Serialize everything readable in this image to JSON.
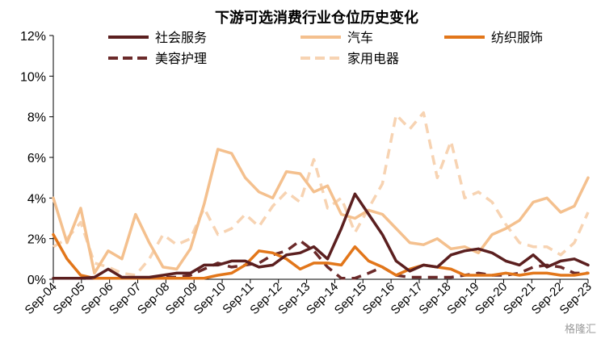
{
  "watermark": "格隆汇",
  "chart_data": {
    "type": "line",
    "title": "下游可选消费行业仓位历史变化",
    "ylim": [
      0,
      12
    ],
    "yticks": [
      "0%",
      "2%",
      "4%",
      "6%",
      "8%",
      "10%",
      "12%"
    ],
    "xticks": [
      "Sep-04",
      "Sep-05",
      "Sep-06",
      "Sep-07",
      "Sep-08",
      "Sep-09",
      "Sep-10",
      "Sep-11",
      "Sep-12",
      "Sep-13",
      "Sep-14",
      "Sep-15",
      "Sep-16",
      "Sep-17",
      "Sep-18",
      "Sep-19",
      "Sep-20",
      "Sep-21",
      "Sep-22",
      "Sep-23"
    ],
    "legend_position": "top",
    "series": [
      {
        "name": "社会服务",
        "color": "#5b1f1f",
        "dash": "solid",
        "values": [
          0.05,
          0.05,
          0.05,
          0.1,
          0.5,
          0.1,
          0.1,
          0.1,
          0.2,
          0.3,
          0.3,
          0.7,
          0.7,
          0.9,
          0.9,
          0.6,
          0.7,
          1.2,
          1.3,
          1.6,
          1.0,
          2.5,
          4.2,
          3.2,
          2.2,
          0.9,
          0.4,
          0.7,
          0.6,
          1.2,
          1.4,
          1.5,
          1.3,
          0.9,
          0.7,
          1.2,
          0.6,
          0.9,
          1.0,
          0.7
        ]
      },
      {
        "name": "汽车",
        "color": "#f4c08e",
        "dash": "solid",
        "values": [
          4.0,
          1.8,
          3.5,
          0.3,
          1.4,
          1.0,
          3.2,
          1.8,
          0.6,
          0.5,
          1.5,
          3.7,
          6.4,
          6.2,
          5.0,
          4.3,
          4.0,
          5.3,
          5.2,
          4.3,
          4.6,
          3.2,
          3.0,
          3.4,
          3.2,
          2.5,
          1.8,
          1.7,
          2.0,
          1.5,
          1.6,
          1.3,
          2.2,
          2.5,
          2.9,
          3.8,
          4.0,
          3.3,
          3.6,
          5.0
        ]
      },
      {
        "name": "纺织服饰",
        "color": "#e2761a",
        "dash": "solid",
        "values": [
          2.2,
          1.0,
          0.2,
          0.05,
          0.05,
          0.05,
          0.05,
          0.05,
          0.05,
          0.05,
          0.05,
          0.05,
          0.2,
          0.3,
          0.7,
          1.4,
          1.3,
          1.0,
          0.5,
          0.8,
          0.8,
          0.7,
          1.6,
          0.9,
          0.6,
          0.2,
          0.5,
          0.7,
          0.6,
          0.5,
          0.2,
          0.2,
          0.2,
          0.3,
          0.2,
          0.3,
          0.3,
          0.2,
          0.2,
          0.3
        ]
      },
      {
        "name": "美容护理",
        "color": "#6b2a2a",
        "dash": "dashed",
        "values": [
          0.05,
          0.05,
          0.05,
          0.05,
          0.05,
          0.05,
          0.05,
          0.05,
          0.1,
          0.1,
          0.2,
          0.5,
          0.8,
          0.6,
          0.7,
          0.8,
          1.2,
          1.4,
          1.9,
          1.4,
          0.6,
          0.05,
          0.05,
          0.3,
          0.6,
          0.2,
          0.1,
          0.1,
          0.1,
          0.1,
          0.2,
          0.3,
          0.2,
          0.2,
          0.3,
          0.6,
          0.7,
          0.6,
          0.3,
          0.3
        ]
      },
      {
        "name": "家用电器",
        "color": "#f7d3b2",
        "dash": "dashed",
        "values": [
          1.6,
          2.0,
          2.8,
          0.8,
          0.6,
          0.3,
          0.2,
          1.0,
          2.2,
          1.7,
          2.0,
          3.5,
          2.2,
          2.5,
          3.2,
          2.6,
          3.6,
          4.3,
          3.8,
          5.9,
          3.5,
          4.0,
          2.3,
          3.5,
          4.7,
          8.1,
          7.4,
          8.2,
          5.0,
          6.8,
          4.0,
          4.3,
          3.8,
          2.7,
          1.8,
          1.6,
          1.6,
          1.2,
          1.8,
          3.3
        ]
      }
    ]
  }
}
